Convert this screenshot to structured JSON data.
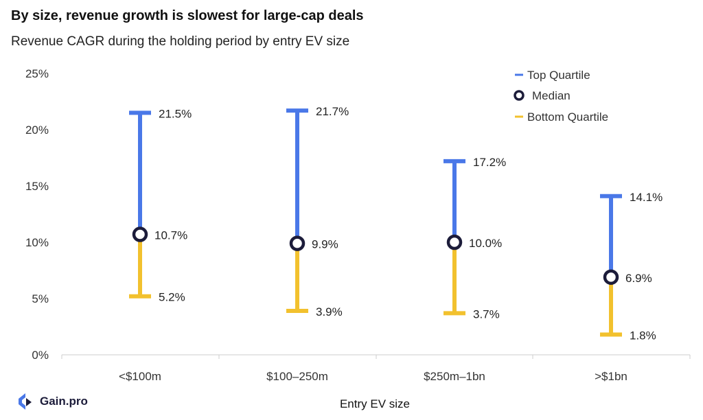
{
  "title": "By size, revenue growth is slowest for large-cap deals",
  "subtitle": "Revenue CAGR during the holding period by entry EV size",
  "brand": {
    "name": "Gain.pro",
    "icon": "gainpro-logo-icon"
  },
  "colors": {
    "top": "#4a78e8",
    "bottom": "#f2c12e",
    "median": "#1c1c3a",
    "axis": "#cccccc",
    "text": "#222222"
  },
  "chart_data": {
    "type": "range",
    "xlabel": "Entry EV size",
    "ylabel": "",
    "ylim": [
      0,
      25
    ],
    "yticks": [
      "0%",
      "5%",
      "10%",
      "15%",
      "20%",
      "25%"
    ],
    "ytick_values": [
      0,
      5,
      10,
      15,
      20,
      25
    ],
    "grid": false,
    "legend_position": "top-right",
    "categories": [
      "<$100m",
      "$100–250m",
      "$250m–1bn",
      ">$1bn"
    ],
    "series": [
      {
        "name": "Top Quartile",
        "values": [
          21.5,
          21.7,
          17.2,
          14.1
        ],
        "labels": [
          "21.5%",
          "21.7%",
          "17.2%",
          "14.1%"
        ]
      },
      {
        "name": "Median",
        "values": [
          10.7,
          9.9,
          10.0,
          6.9
        ],
        "labels": [
          "10.7%",
          "9.9%",
          "10.0%",
          "6.9%"
        ]
      },
      {
        "name": "Bottom Quartile",
        "values": [
          5.2,
          3.9,
          3.7,
          1.8
        ],
        "labels": [
          "5.2%",
          "3.9%",
          "3.7%",
          "1.8%"
        ]
      }
    ]
  }
}
